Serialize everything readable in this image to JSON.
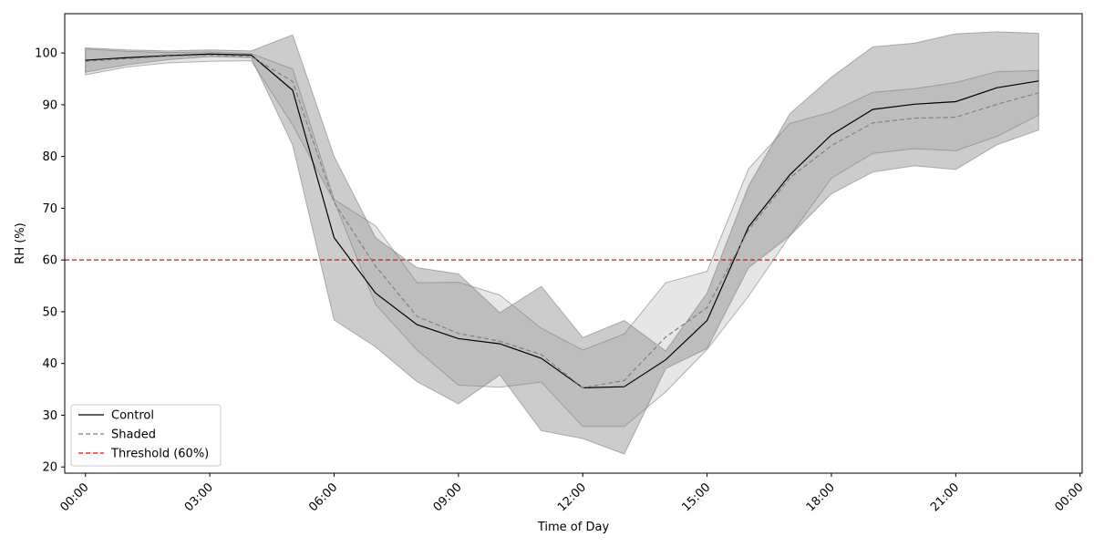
{
  "chart_data": {
    "type": "line",
    "title": "",
    "xlabel": "Time of Day",
    "ylabel": "RH (%)",
    "x": [
      0,
      1,
      2,
      3,
      4,
      5,
      6,
      7,
      8,
      9,
      10,
      11,
      12,
      13,
      14,
      15,
      16,
      17,
      18,
      19,
      20,
      21,
      22,
      23
    ],
    "xlim": [
      -0.5,
      24.05
    ],
    "ylim": [
      18.8,
      107.6
    ],
    "x_ticks": [
      0,
      3,
      6,
      9,
      12,
      15,
      18,
      21,
      24
    ],
    "x_tick_labels": [
      "00:00",
      "03:00",
      "06:00",
      "09:00",
      "12:00",
      "15:00",
      "18:00",
      "21:00",
      "00:00"
    ],
    "y_ticks": [
      20,
      30,
      40,
      50,
      60,
      70,
      80,
      90,
      100
    ],
    "y_tick_labels": [
      "20",
      "30",
      "40",
      "50",
      "60",
      "70",
      "80",
      "90",
      "100"
    ],
    "grid": false,
    "legend_position": "lower-left",
    "series": [
      {
        "name": "Control",
        "color": "#000000",
        "line_style": "solid",
        "values": [
          98.6,
          99.1,
          99.5,
          99.8,
          99.6,
          92.8,
          64.3,
          53.6,
          47.5,
          44.8,
          43.8,
          41.0,
          35.3,
          35.5,
          40.7,
          48.3,
          66.4,
          76.5,
          84.2,
          89.1,
          90.1,
          90.6,
          93.3,
          94.6
        ],
        "band_upper": [
          101.0,
          100.6,
          100.4,
          100.6,
          100.4,
          103.5,
          80.0,
          64.3,
          58.5,
          57.3,
          49.8,
          54.9,
          45.0,
          48.3,
          42.4,
          53.6,
          74.3,
          88.3,
          95.3,
          101.2,
          101.9,
          103.7,
          104.1,
          103.8
        ],
        "band_lower": [
          96.3,
          97.7,
          98.7,
          99.3,
          99.1,
          82.2,
          48.4,
          43.2,
          36.5,
          32.2,
          37.8,
          27.0,
          25.5,
          22.5,
          39.0,
          42.9,
          58.5,
          64.7,
          72.8,
          77.0,
          78.2,
          77.5,
          82.3,
          85.1
        ]
      },
      {
        "name": "Shaded",
        "color": "#808080",
        "line_style": "dashed",
        "values": [
          98.4,
          98.9,
          99.4,
          99.6,
          99.3,
          94.5,
          71.1,
          58.8,
          49.1,
          45.8,
          44.3,
          41.7,
          35.3,
          36.7,
          45.1,
          50.8,
          65.8,
          75.9,
          82.1,
          86.5,
          87.4,
          87.6,
          90.1,
          92.3
        ],
        "band_upper": [
          100.8,
          100.3,
          100.1,
          100.2,
          99.9,
          96.9,
          71.7,
          66.6,
          55.6,
          55.7,
          53.2,
          46.8,
          42.6,
          45.7,
          55.6,
          57.8,
          77.6,
          86.4,
          88.6,
          92.4,
          93.1,
          94.3,
          96.4,
          96.6
        ],
        "band_lower": [
          95.8,
          97.3,
          98.1,
          98.4,
          98.5,
          86.1,
          71.4,
          51.4,
          42.6,
          35.8,
          35.4,
          36.4,
          27.8,
          27.8,
          34.5,
          42.7,
          53.0,
          64.7,
          75.8,
          80.6,
          81.5,
          81.1,
          83.9,
          88.0
        ]
      }
    ],
    "reference_lines": [
      {
        "name": "Threshold (60%)",
        "y": 60,
        "color": "#ff0000",
        "line_style": "dashed"
      }
    ]
  }
}
